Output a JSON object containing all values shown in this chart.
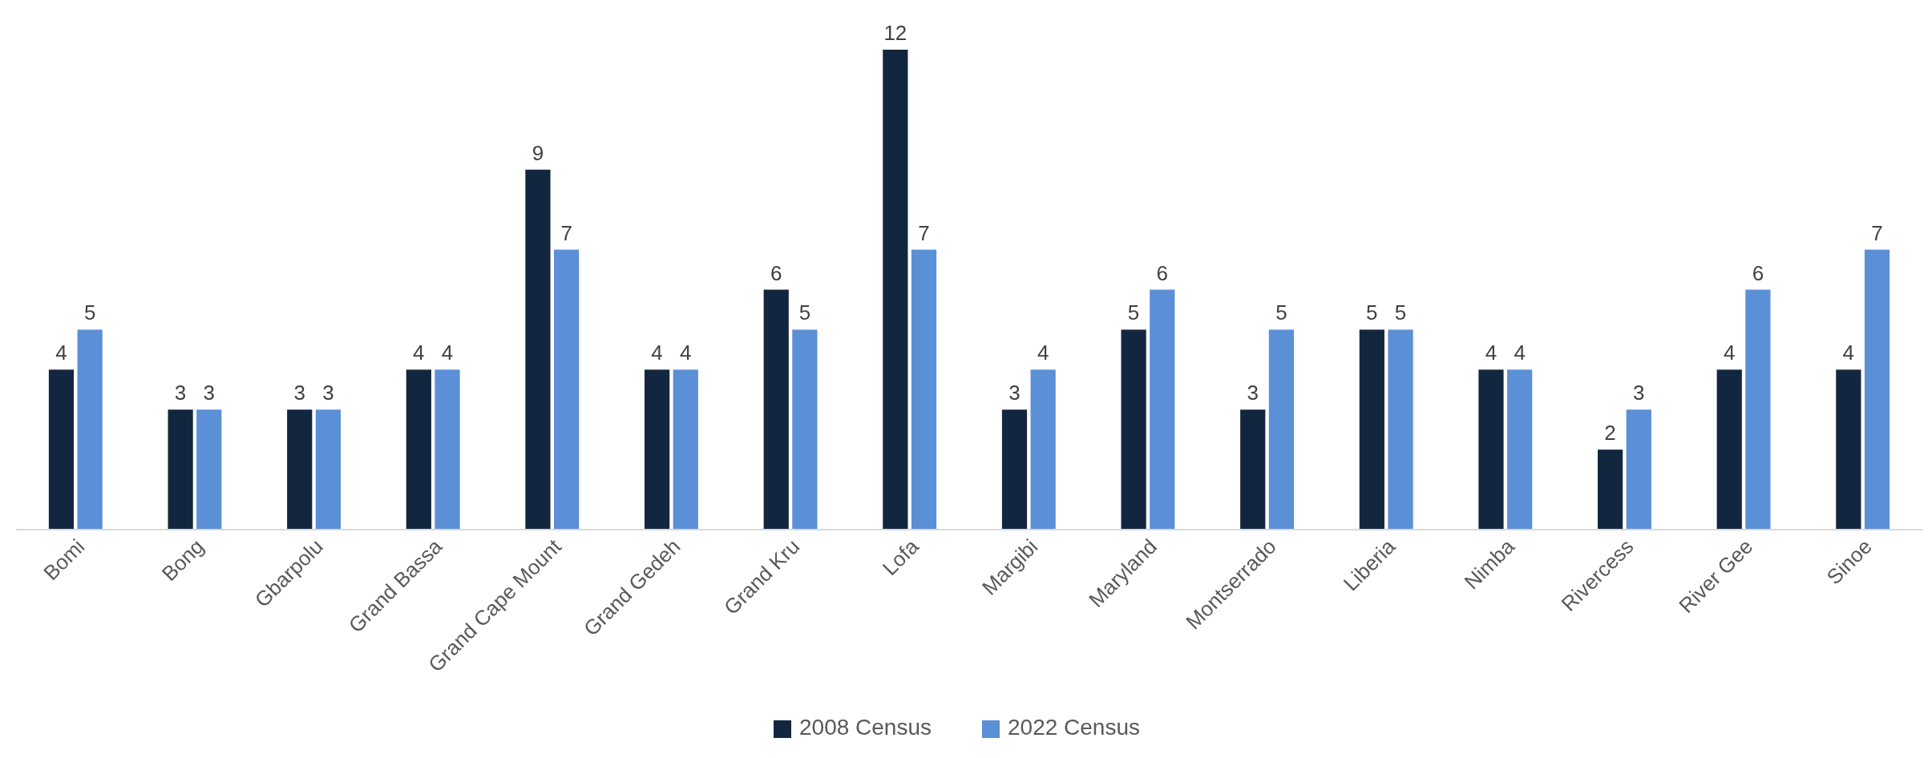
{
  "chart_data": {
    "type": "bar",
    "categories": [
      "Bomi",
      "Bong",
      "Gbarpolu",
      "Grand Bassa",
      "Grand Cape Mount",
      "Grand Gedeh",
      "Grand Kru",
      "Lofa",
      "Margibi",
      "Maryland",
      "Montserrado",
      "Liberia",
      "Nimba",
      "Rivercess",
      "River Gee",
      "Sinoe"
    ],
    "series": [
      {
        "name": "2008 Census",
        "color": "#12263f",
        "values": [
          4,
          3,
          3,
          4,
          9,
          4,
          6,
          12,
          3,
          5,
          3,
          5,
          4,
          2,
          4,
          4
        ]
      },
      {
        "name": "2022 Census",
        "color": "#5b8fd6",
        "values": [
          5,
          3,
          3,
          4,
          7,
          4,
          5,
          7,
          4,
          6,
          5,
          5,
          4,
          3,
          6,
          7
        ]
      }
    ],
    "data_labels": true,
    "legend": "bottom"
  }
}
